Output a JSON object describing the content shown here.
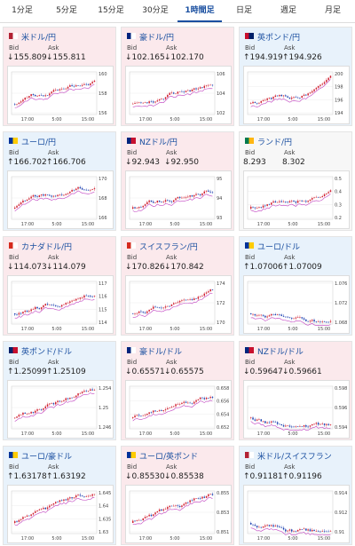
{
  "tabs": [
    "1分足",
    "5分足",
    "15分足",
    "30分足",
    "1時間足",
    "日足",
    "週足",
    "月足"
  ],
  "active_tab": 4,
  "bid_label": "Bid",
  "ask_label": "Ask",
  "time_labels": [
    "17:00",
    "5:00",
    "15:00"
  ],
  "cards": [
    {
      "pair": "米ドル/円",
      "trend": "down",
      "bid": "↓155.809",
      "ask": "↓155.811",
      "yticks": [
        "160",
        "158",
        "156"
      ]
    },
    {
      "pair": "豪ドル/円",
      "trend": "down",
      "bid": "↓102.165",
      "ask": "↓102.170",
      "yticks": [
        "106",
        "104",
        "102"
      ]
    },
    {
      "pair": "英ポンド/円",
      "trend": "up",
      "bid": "↑194.919",
      "ask": "↑194.926",
      "yticks": [
        "200",
        "198",
        "196",
        "194"
      ]
    },
    {
      "pair": "ユーロ/円",
      "trend": "up",
      "bid": "↑166.702",
      "ask": "↑166.706",
      "yticks": [
        "170",
        "168",
        "166"
      ]
    },
    {
      "pair": "NZドル/円",
      "trend": "down",
      "bid": "↓92.943",
      "ask": "↓92.950",
      "yticks": [
        "95",
        "94",
        "93"
      ]
    },
    {
      "pair": "ランド/円",
      "trend": "flat",
      "bid": "8.293",
      "ask": "8.302",
      "yticks": [
        "0.5",
        "0.4",
        "0.3",
        "0.2"
      ]
    },
    {
      "pair": "カナダドル/円",
      "trend": "down",
      "bid": "↓114.073",
      "ask": "↓114.079",
      "yticks": [
        "117",
        "116",
        "115",
        "114"
      ]
    },
    {
      "pair": "スイスフラン/円",
      "trend": "down",
      "bid": "↓170.826",
      "ask": "↓170.842",
      "yticks": [
        "174",
        "172",
        "170"
      ]
    },
    {
      "pair": "ユーロ/ドル",
      "trend": "up",
      "bid": "↑1.07006",
      "ask": "↑1.07009",
      "yticks": [
        "1.076",
        "1.072",
        "1.068"
      ]
    },
    {
      "pair": "英ポンド/ドル",
      "trend": "up",
      "bid": "↑1.25099",
      "ask": "↑1.25109",
      "yticks": [
        "1.254",
        "1.25",
        "1.246"
      ]
    },
    {
      "pair": "豪ドル/ドル",
      "trend": "down",
      "bid": "↓0.65571",
      "ask": "↓0.65575",
      "yticks": [
        "0.658",
        "0.656",
        "0.654",
        "0.652"
      ]
    },
    {
      "pair": "NZドル/ドル",
      "trend": "down",
      "bid": "↓0.59647",
      "ask": "↓0.59661",
      "yticks": [
        "0.598",
        "0.596",
        "0.594"
      ]
    },
    {
      "pair": "ユーロ/豪ドル",
      "trend": "up",
      "bid": "↑1.63178",
      "ask": "↑1.63192",
      "yticks": [
        "1.645",
        "1.64",
        "1.635",
        "1.63"
      ]
    },
    {
      "pair": "ユーロ/英ポンド",
      "trend": "down",
      "bid": "↓0.85530",
      "ask": "↓0.85538",
      "yticks": [
        "0.855",
        "0.853",
        "0.851"
      ]
    },
    {
      "pair": "米ドル/スイスフラン",
      "trend": "up",
      "bid": "↑0.91181",
      "ask": "↑0.91196",
      "yticks": [
        "0.914",
        "0.912",
        "0.91"
      ]
    }
  ]
}
